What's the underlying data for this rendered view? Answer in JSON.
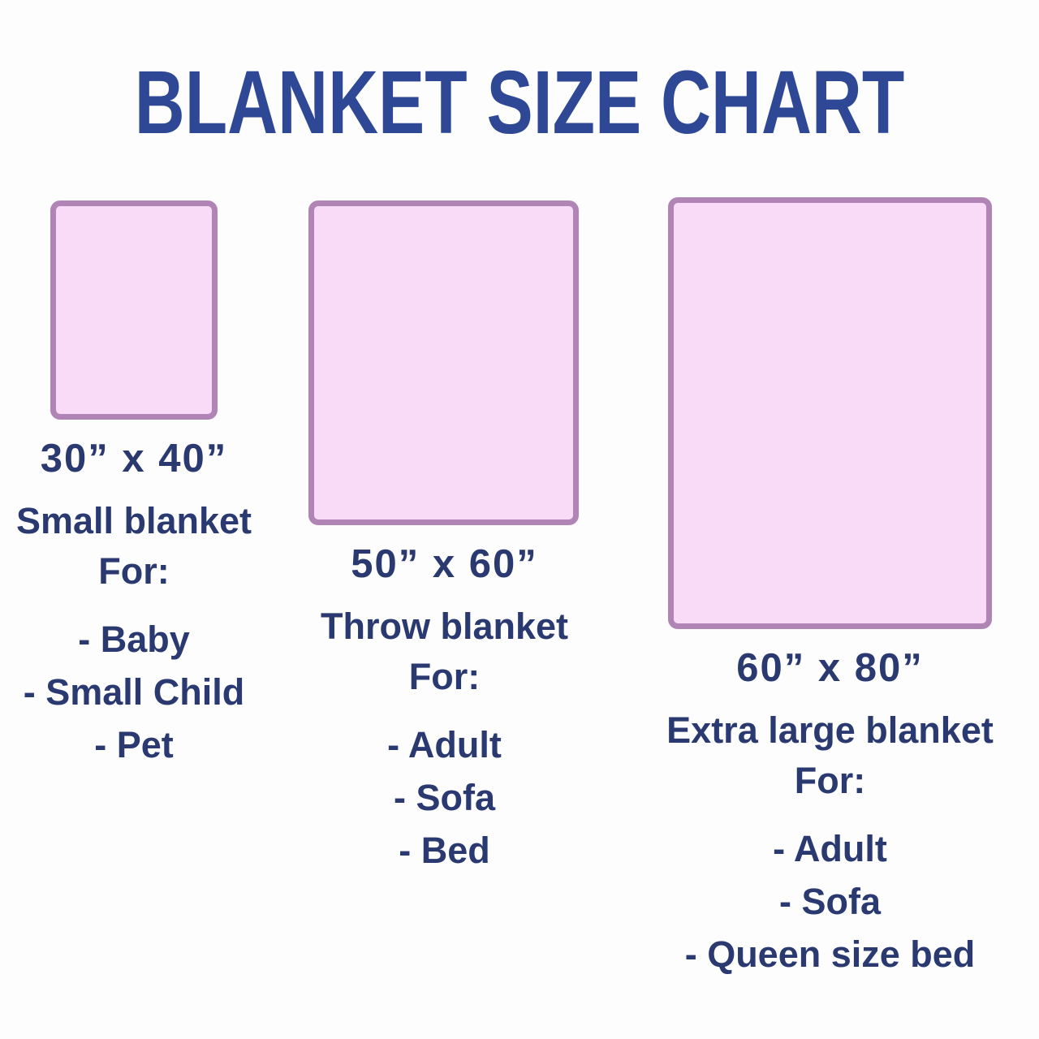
{
  "title": "BLANKET SIZE CHART",
  "colors": {
    "title_blue": "#2e4896",
    "text_navy": "#2a3a71",
    "blanket_fill": "#f9dbf8",
    "blanket_border": "#b184b6",
    "background": "#fdfdfe"
  },
  "blankets": [
    {
      "size_label": "30” x 40”",
      "width_inches": 30,
      "height_inches": 40,
      "name": "Small blanket",
      "for_label": "For:",
      "uses": [
        "- Baby",
        "- Small Child",
        "- Pet"
      ]
    },
    {
      "size_label": "50” x 60”",
      "width_inches": 50,
      "height_inches": 60,
      "name": "Throw blanket",
      "for_label": "For:",
      "uses": [
        "- Adult",
        "- Sofa",
        "- Bed"
      ]
    },
    {
      "size_label": "60” x 80”",
      "width_inches": 60,
      "height_inches": 80,
      "name": "Extra large blanket",
      "for_label": "For:",
      "uses": [
        "- Adult",
        "- Sofa",
        "- Queen size bed"
      ]
    }
  ]
}
